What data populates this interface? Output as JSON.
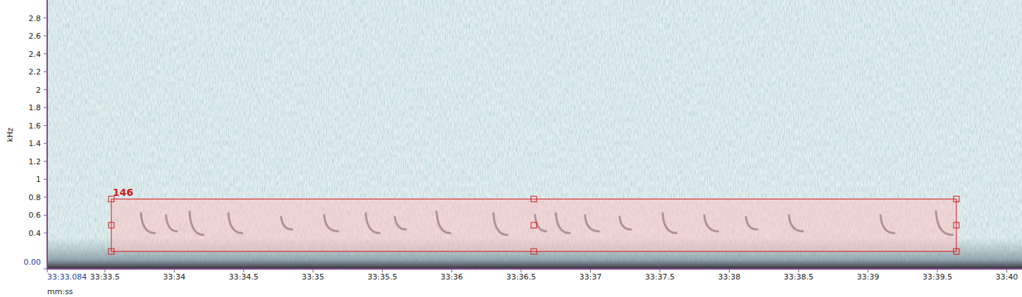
{
  "chart_data": {
    "type": "spectrogram",
    "xlabel": "mm:ss",
    "ylabel": "kHz",
    "xlim": [
      2013.084,
      2020.11
    ],
    "ylim": [
      0,
      3.0
    ],
    "xticks": [
      {
        "value": 2013.084,
        "label": "33:33.084"
      },
      {
        "value": 2013.5,
        "label": "33:33.5"
      },
      {
        "value": 2014,
        "label": "33:34"
      },
      {
        "value": 2014.5,
        "label": "33:34.5"
      },
      {
        "value": 2015,
        "label": "33:35"
      },
      {
        "value": 2015.5,
        "label": "33:35.5"
      },
      {
        "value": 2016,
        "label": "33:36"
      },
      {
        "value": 2016.5,
        "label": "33:36.5"
      },
      {
        "value": 2017,
        "label": "33:37"
      },
      {
        "value": 2017.5,
        "label": "33:37.5"
      },
      {
        "value": 2018,
        "label": "33:38"
      },
      {
        "value": 2018.5,
        "label": "33:38.5"
      },
      {
        "value": 2019,
        "label": "33:39"
      },
      {
        "value": 2019.5,
        "label": "33:39.5"
      },
      {
        "value": 2020,
        "label": "33:40"
      }
    ],
    "yticks": [
      {
        "value": 0,
        "label": "0.00"
      },
      0.4,
      0.6,
      0.8,
      1,
      1.2,
      1.4,
      1.6,
      1.8,
      2,
      2.2,
      2.4,
      2.6,
      2.8
    ],
    "selection": {
      "label": "146",
      "time": [
        2013.546,
        2019.637
      ],
      "freq": [
        0.195,
        0.78
      ]
    },
    "calls": [
      {
        "t": 2013.76,
        "d": 0.1,
        "f0": 0.62,
        "f1": 0.4
      },
      {
        "t": 2013.94,
        "d": 0.08,
        "f0": 0.6,
        "f1": 0.42
      },
      {
        "t": 2014.11,
        "d": 0.1,
        "f0": 0.64,
        "f1": 0.38
      },
      {
        "t": 2014.39,
        "d": 0.1,
        "f0": 0.62,
        "f1": 0.4
      },
      {
        "t": 2014.77,
        "d": 0.08,
        "f0": 0.58,
        "f1": 0.44
      },
      {
        "t": 2015.08,
        "d": 0.1,
        "f0": 0.6,
        "f1": 0.42
      },
      {
        "t": 2015.38,
        "d": 0.1,
        "f0": 0.62,
        "f1": 0.4
      },
      {
        "t": 2015.59,
        "d": 0.08,
        "f0": 0.58,
        "f1": 0.44
      },
      {
        "t": 2015.89,
        "d": 0.1,
        "f0": 0.64,
        "f1": 0.4
      },
      {
        "t": 2016.3,
        "d": 0.1,
        "f0": 0.62,
        "f1": 0.38
      },
      {
        "t": 2016.6,
        "d": 0.08,
        "f0": 0.6,
        "f1": 0.42
      },
      {
        "t": 2016.75,
        "d": 0.1,
        "f0": 0.62,
        "f1": 0.4
      },
      {
        "t": 2016.96,
        "d": 0.1,
        "f0": 0.6,
        "f1": 0.42
      },
      {
        "t": 2017.21,
        "d": 0.08,
        "f0": 0.58,
        "f1": 0.44
      },
      {
        "t": 2017.52,
        "d": 0.1,
        "f0": 0.62,
        "f1": 0.4
      },
      {
        "t": 2017.82,
        "d": 0.1,
        "f0": 0.6,
        "f1": 0.42
      },
      {
        "t": 2018.12,
        "d": 0.08,
        "f0": 0.58,
        "f1": 0.44
      },
      {
        "t": 2018.43,
        "d": 0.1,
        "f0": 0.6,
        "f1": 0.42
      },
      {
        "t": 2019.09,
        "d": 0.1,
        "f0": 0.6,
        "f1": 0.4
      },
      {
        "t": 2019.49,
        "d": 0.12,
        "f0": 0.64,
        "f1": 0.38
      }
    ]
  }
}
